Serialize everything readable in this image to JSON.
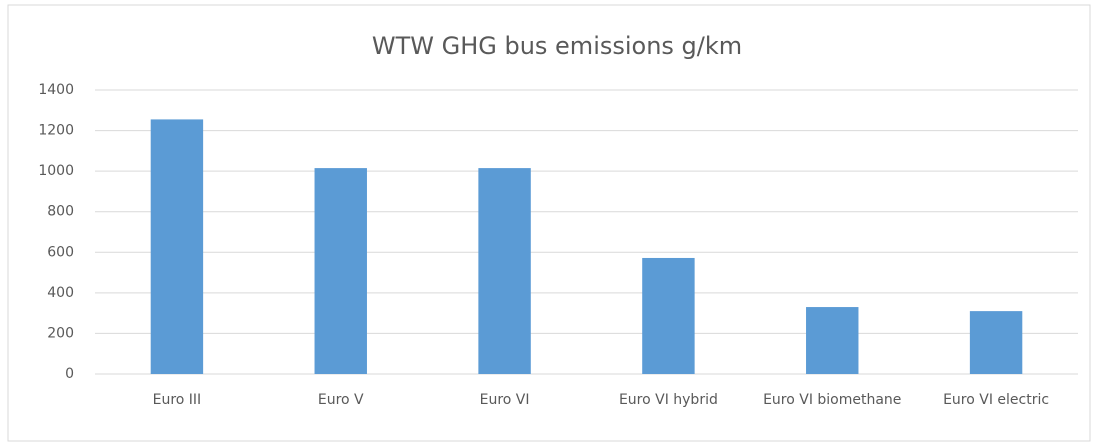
{
  "chart_data": {
    "type": "bar",
    "title": "WTW GHG bus emissions g/km",
    "categories": [
      "Euro III",
      "Euro V",
      "Euro VI",
      "Euro VI hybrid",
      "Euro VI biomethane",
      "Euro VI electric"
    ],
    "values": [
      1255,
      1015,
      1015,
      572,
      330,
      310
    ],
    "color": "#5b9bd5",
    "ylim": [
      0,
      1400
    ],
    "yticks": [
      0,
      200,
      400,
      600,
      800,
      1000,
      1200,
      1400
    ],
    "grid": true
  }
}
